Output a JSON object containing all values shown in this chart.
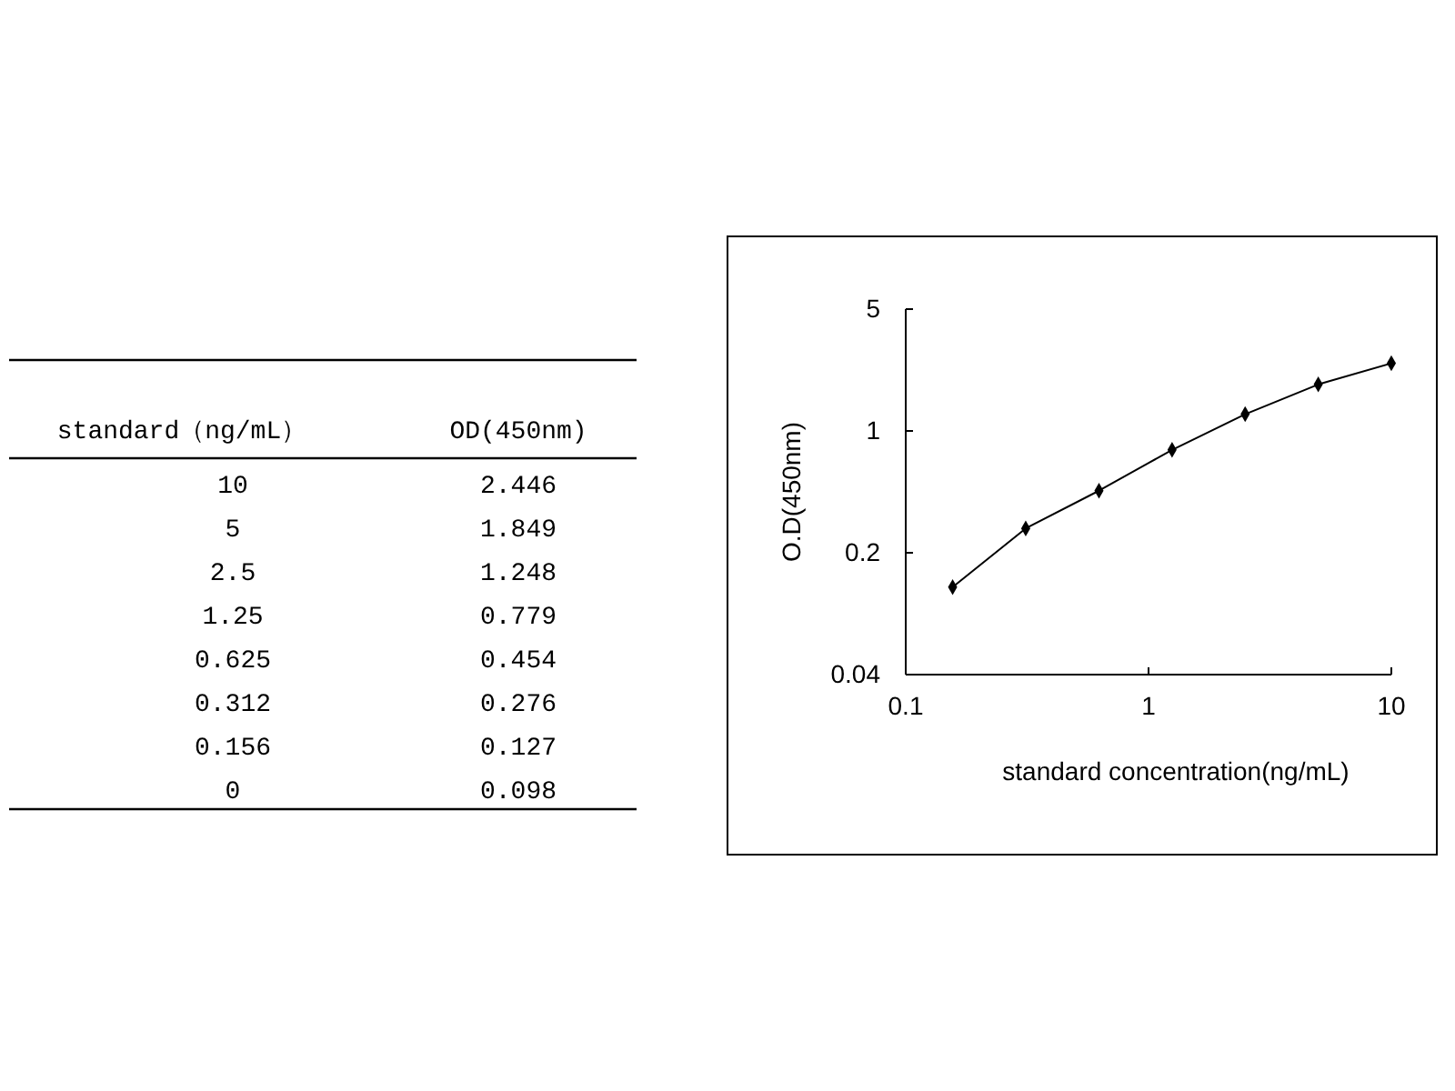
{
  "chart_data": [
    {
      "type": "other",
      "xlabel": "standard（ng/mL）",
      "ylabel": "OD(450nm)",
      "categories": [
        "10",
        "5",
        "2.5",
        "1.25",
        "0.625",
        "0.312",
        "0.156",
        "0"
      ],
      "values": [
        2.446,
        1.849,
        1.248,
        0.779,
        0.454,
        0.276,
        0.127,
        0.098
      ],
      "data_labels": true
    },
    {
      "type": "line",
      "xlabel": "standard concentration(ng/mL)",
      "ylabel": "O.D(450nm)",
      "x": [
        0.156,
        0.312,
        0.625,
        1.25,
        2.5,
        5,
        10
      ],
      "series": [
        {
          "color": "#000000",
          "values": [
            0.127,
            0.276,
            0.454,
            0.779,
            1.248,
            1.849,
            2.446
          ]
        }
      ],
      "log": "xy",
      "xlim": [
        0.1,
        10
      ],
      "ylim": [
        0.04,
        5
      ],
      "xticks": [
        0.1,
        1,
        10
      ],
      "yticks": [
        0.04,
        0.2,
        1,
        5
      ],
      "marker": "diamond",
      "line_style": "solid",
      "grid": false
    }
  ]
}
